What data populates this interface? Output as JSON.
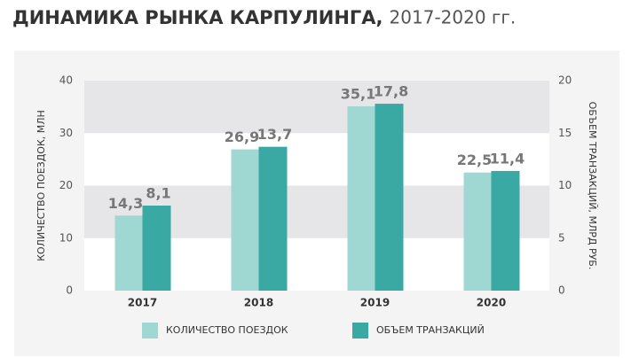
{
  "chart_data": {
    "type": "bar",
    "title": "ДИНАМИКА РЫНКА КАРПУЛИНГА,",
    "subtitle": "2017-2020 гг.",
    "categories": [
      "2017",
      "2018",
      "2019",
      "2020"
    ],
    "series": [
      {
        "name": "КОЛИЧЕСТВО ПОЕЗДОК",
        "color": "#9fd8d2",
        "values": [
          14.3,
          26.9,
          35.1,
          22.5
        ],
        "value_labels": [
          "14,3",
          "26,9",
          "35,1",
          "22,5"
        ]
      },
      {
        "name": "ОБЪЕМ ТРАНЗАКЦИЙ",
        "color": "#3aa9a3",
        "axis": "y2",
        "values": [
          8.1,
          13.7,
          17.8,
          11.4
        ],
        "value_labels": [
          "8,1",
          "13,7",
          "17,8",
          "11,4"
        ]
      }
    ],
    "ylabel": "КОЛИЧЕСТВО ПОЕЗДОК, МЛН",
    "y2label": "ОБЪЕМ ТРАНЗАКЦИЙ, МЛРД РУБ.",
    "ylim": [
      0,
      40
    ],
    "yticks": [
      0,
      10,
      20,
      30,
      40
    ],
    "y2lim": [
      0,
      20
    ],
    "y2ticks": [
      0,
      5,
      10,
      15,
      20
    ],
    "grid": "bands",
    "band_color": "#e6e6e8"
  }
}
